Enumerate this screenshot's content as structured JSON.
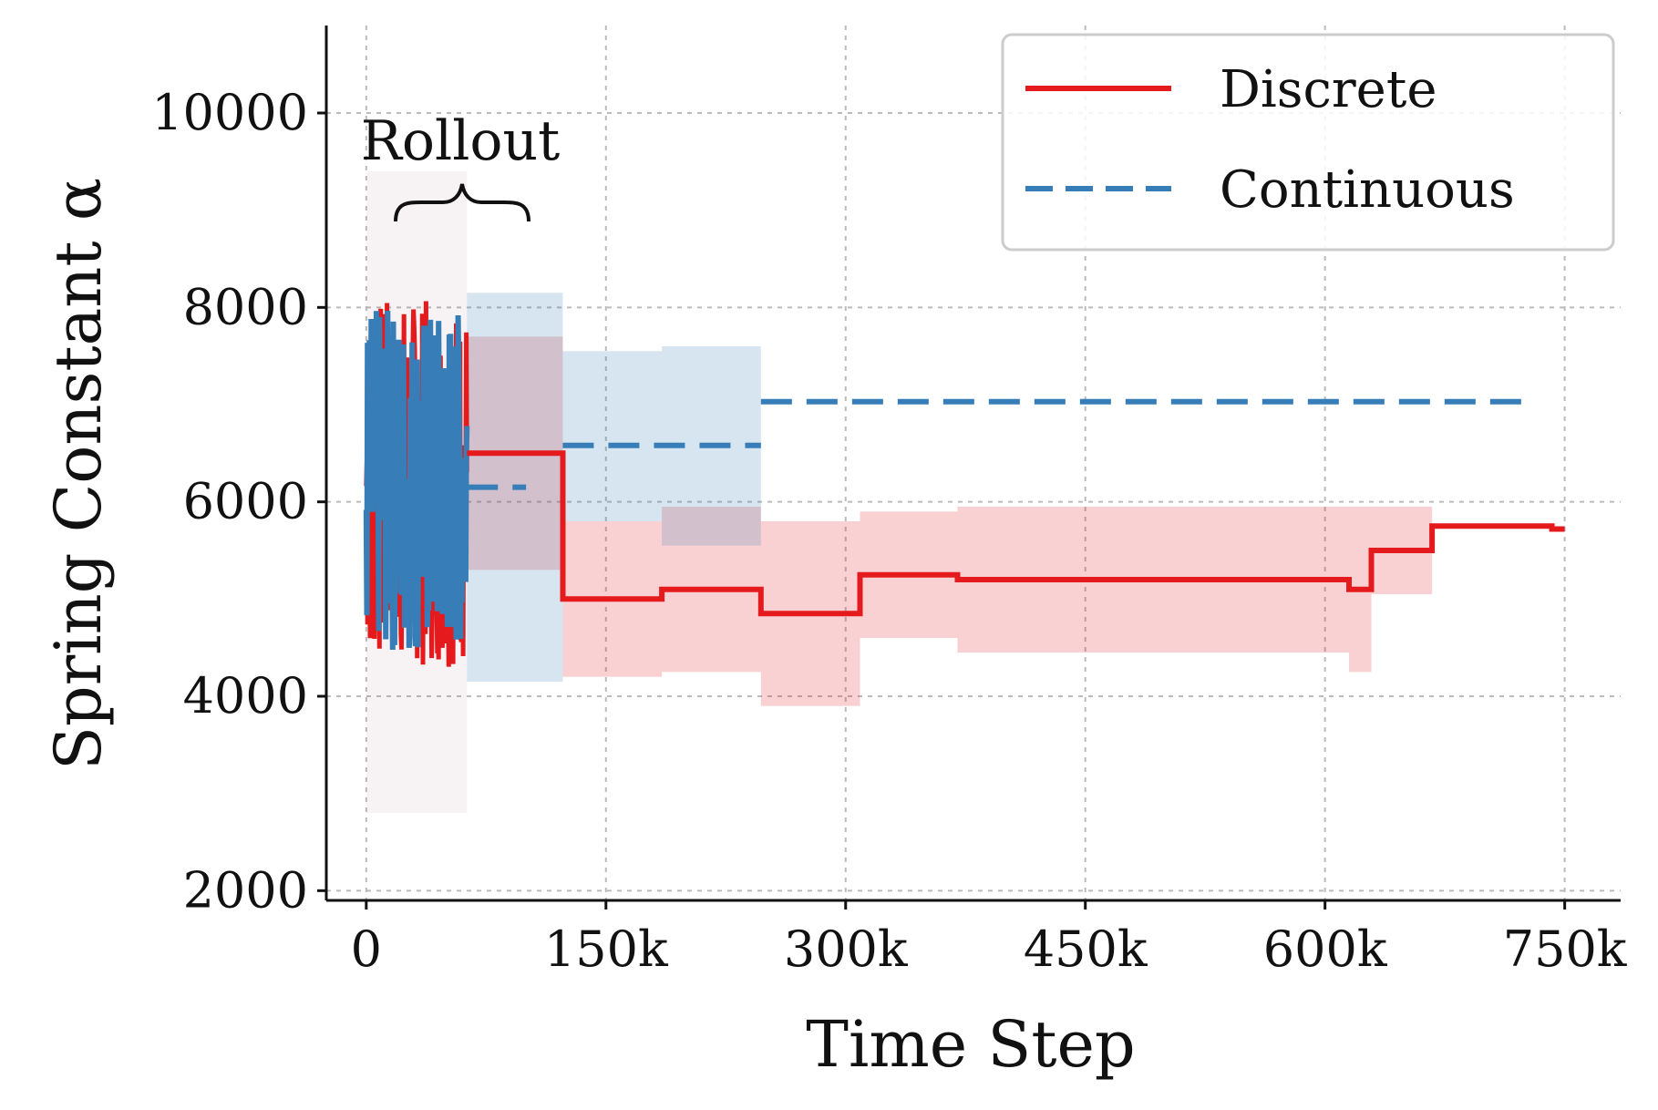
{
  "chart_data": {
    "type": "line",
    "title": "",
    "xlabel": "Time Step",
    "ylabel": "Spring Constant α",
    "xlim": [
      -25000,
      785000
    ],
    "ylim": [
      1900,
      10900
    ],
    "x_ticks": [
      {
        "value": 0,
        "label": "0"
      },
      {
        "value": 150000,
        "label": "150k"
      },
      {
        "value": 300000,
        "label": "300k"
      },
      {
        "value": 450000,
        "label": "450k"
      },
      {
        "value": 600000,
        "label": "600k"
      },
      {
        "value": 750000,
        "label": "750k"
      }
    ],
    "y_ticks": [
      {
        "value": 2000,
        "label": "2000"
      },
      {
        "value": 4000,
        "label": "4000"
      },
      {
        "value": 6000,
        "label": "6000"
      },
      {
        "value": 8000,
        "label": "8000"
      },
      {
        "value": 10000,
        "label": "10000"
      }
    ],
    "grid": true,
    "legend": {
      "placement": "top-right"
    },
    "annotations": [
      {
        "text": "Rollout",
        "x_start": 6000,
        "x_end": 62000,
        "y": 9600
      }
    ],
    "rollout_region": {
      "x_start": 0,
      "x_end": 63000,
      "y_min": 3800,
      "y_max": 8700
    },
    "series": [
      {
        "name": "Discrete",
        "color": "#e41a1c",
        "style": "solid",
        "steps": [
          {
            "x0": 63000,
            "x1": 123000,
            "y": 6500,
            "lo": 5300,
            "hi": 7700
          },
          {
            "x0": 123000,
            "x1": 185000,
            "y": 5000,
            "lo": 4200,
            "hi": 5800
          },
          {
            "x0": 185000,
            "x1": 247000,
            "y": 5100,
            "lo": 4250,
            "hi": 5950
          },
          {
            "x0": 247000,
            "x1": 309000,
            "y": 4850,
            "lo": 3900,
            "hi": 5800
          },
          {
            "x0": 309000,
            "x1": 370000,
            "y": 5250,
            "lo": 4600,
            "hi": 5900
          },
          {
            "x0": 370000,
            "x1": 615000,
            "y": 5200,
            "lo": 4450,
            "hi": 5950
          },
          {
            "x0": 615000,
            "x1": 629000,
            "y": 5100,
            "lo": 4250,
            "hi": 5950
          },
          {
            "x0": 629000,
            "x1": 667000,
            "y": 5500,
            "lo": 5050,
            "hi": 5950
          },
          {
            "x0": 667000,
            "x1": 742000,
            "y": 5750,
            "lo": null,
            "hi": null
          },
          {
            "x0": 742000,
            "x1": 750000,
            "y": 5720,
            "lo": null,
            "hi": null
          }
        ]
      },
      {
        "name": "Continuous",
        "color": "#377eb8",
        "style": "dashed",
        "steps": [
          {
            "x0": 63000,
            "x1": 100000,
            "y": 6150,
            "lo": null,
            "hi": null
          },
          {
            "x0": 123000,
            "x1": 247000,
            "y": 6580,
            "lo": 4150,
            "hi": 8150
          },
          {
            "x0": 247000,
            "x1": 730000,
            "y": 7030,
            "lo": null,
            "hi": null
          }
        ],
        "bands": [
          {
            "x0": 63000,
            "x1": 123000,
            "lo": 4150,
            "hi": 8150
          },
          {
            "x0": 123000,
            "x1": 185000,
            "lo": 5800,
            "hi": 7550
          },
          {
            "x0": 185000,
            "x1": 247000,
            "lo": 5550,
            "hi": 7600
          }
        ]
      }
    ]
  }
}
